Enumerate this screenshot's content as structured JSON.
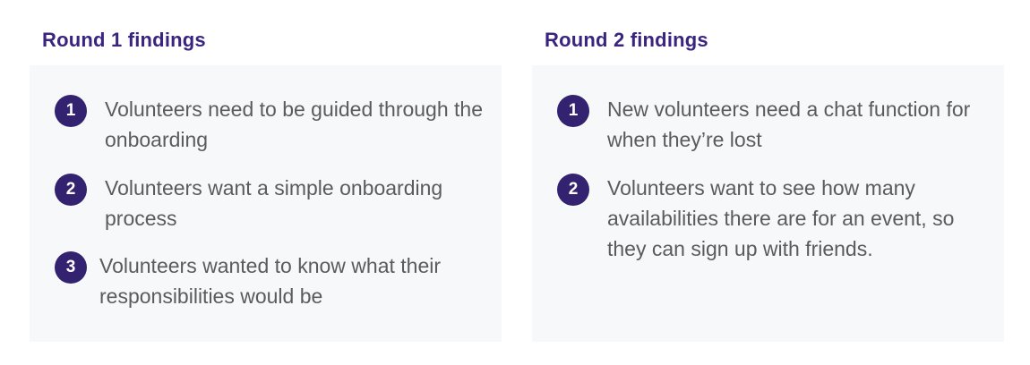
{
  "round1": {
    "title": "Round 1 findings",
    "items": [
      {
        "number": "1",
        "text": "Volunteers need to be guided through the onboarding"
      },
      {
        "number": "2",
        "text": "Volunteers want a simple onboarding process"
      },
      {
        "number": "3",
        "text": "Volunteers wanted to know what their responsibilities would be"
      }
    ]
  },
  "round2": {
    "title": "Round 2 findings",
    "items": [
      {
        "number": "1",
        "text": "New volunteers need a chat function for when they’re lost"
      },
      {
        "number": "2",
        "text": "Volunteers want to see how many availabilities there are for an event, so they can sign up with friends."
      }
    ]
  },
  "colors": {
    "heading": "#3a2480",
    "badge": "#33226f",
    "card_background": "#f7f8fa",
    "body_text": "#5b5b5b"
  }
}
